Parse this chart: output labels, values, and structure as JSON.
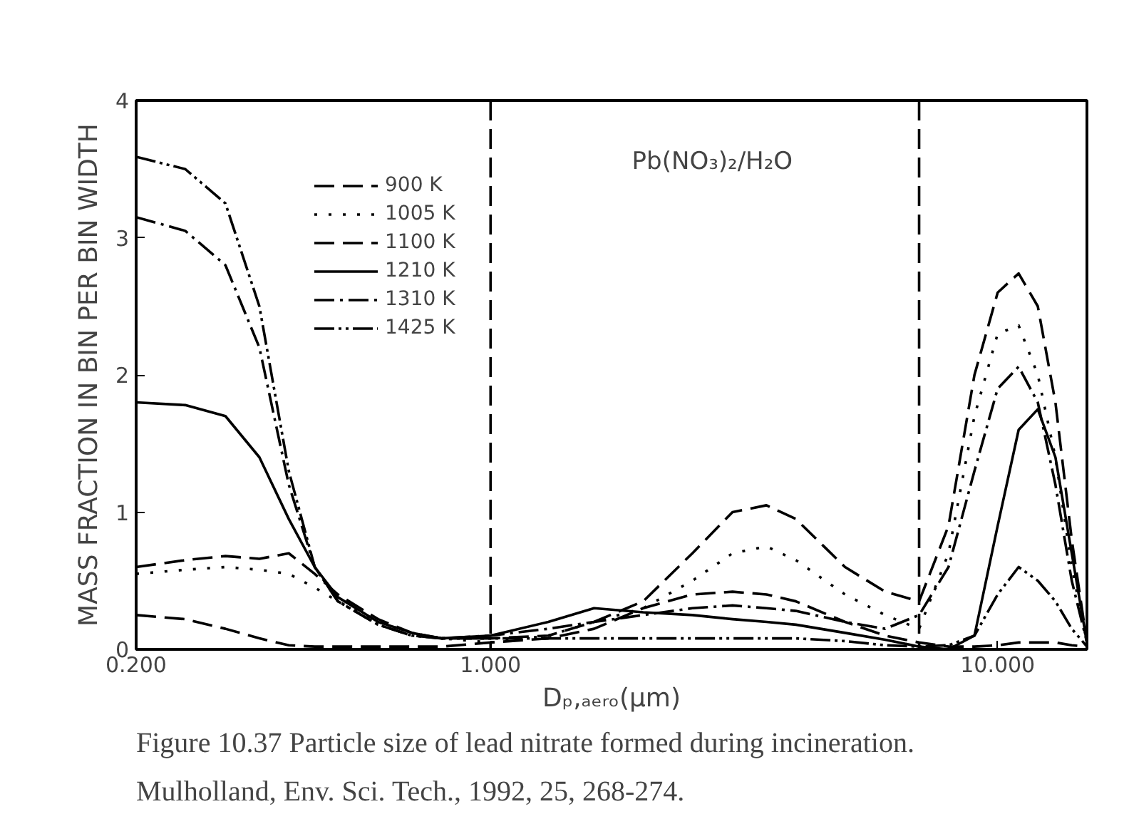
{
  "chart_data": {
    "type": "line",
    "xlabel": "Dₚ,ₐₑᵣₒ(μm)",
    "ylabel": "MASS FRACTION IN BIN PER BIN WIDTH",
    "log": "x",
    "xlim": [
      0.2,
      15
    ],
    "ylim": [
      0,
      4
    ],
    "xticks": [
      {
        "value": 0.2,
        "label": "0.200"
      },
      {
        "value": 1,
        "label": "1.000"
      },
      {
        "value": 10,
        "label": "10.000"
      }
    ],
    "yticks": [
      0,
      1,
      2,
      3,
      4
    ],
    "grid": false,
    "legend": "top left",
    "x": [
      0.2,
      0.25,
      0.3,
      0.35,
      0.4,
      0.45,
      0.5,
      0.6,
      0.7,
      0.8,
      1.0,
      1.3,
      1.6,
      2,
      2.5,
      3,
      3.5,
      4,
      5,
      6,
      7,
      8,
      9,
      10,
      11,
      12,
      13,
      14,
      15
    ],
    "series": [
      {
        "name": "900 K",
        "color": "#000000",
        "line_style": "dashed",
        "values": [
          0.25,
          0.22,
          0.15,
          0.08,
          0.03,
          0.02,
          0.02,
          0.02,
          0.02,
          0.02,
          0.05,
          0.08,
          0.15,
          0.3,
          0.4,
          0.42,
          0.4,
          0.35,
          0.2,
          0.1,
          0.05,
          0.02,
          0.02,
          0.03,
          0.05,
          0.05,
          0.05,
          0.03,
          0.02
        ]
      },
      {
        "name": "1005 K",
        "color": "#000000",
        "line_style": "dotted",
        "values": [
          0.55,
          0.58,
          0.6,
          0.58,
          0.55,
          0.45,
          0.35,
          0.2,
          0.12,
          0.08,
          0.05,
          0.1,
          0.2,
          0.3,
          0.5,
          0.7,
          0.75,
          0.65,
          0.4,
          0.25,
          0.15,
          0.7,
          1.7,
          2.3,
          2.36,
          2.0,
          1.4,
          0.6,
          0.05
        ]
      },
      {
        "name": "1100 K",
        "color": "#000000",
        "line_style": "dashed",
        "values": [
          0.6,
          0.65,
          0.68,
          0.66,
          0.7,
          0.55,
          0.4,
          0.22,
          0.12,
          0.08,
          0.08,
          0.1,
          0.2,
          0.35,
          0.7,
          1.0,
          1.05,
          0.95,
          0.6,
          0.42,
          0.35,
          0.9,
          2.0,
          2.6,
          2.74,
          2.5,
          1.8,
          0.8,
          0.05
        ]
      },
      {
        "name": "1210 K",
        "color": "#000000",
        "line_style": "solid",
        "values": [
          1.8,
          1.78,
          1.7,
          1.4,
          0.95,
          0.6,
          0.38,
          0.2,
          0.12,
          0.08,
          0.1,
          0.2,
          0.3,
          0.27,
          0.25,
          0.22,
          0.2,
          0.18,
          0.12,
          0.07,
          0.02,
          0.0,
          0.1,
          0.9,
          1.6,
          1.75,
          1.4,
          0.7,
          0.05
        ]
      },
      {
        "name": "1310 K",
        "color": "#000000",
        "line_style": "dashdot",
        "values": [
          3.15,
          3.05,
          2.8,
          2.2,
          1.2,
          0.6,
          0.35,
          0.18,
          0.1,
          0.08,
          0.1,
          0.15,
          0.2,
          0.25,
          0.3,
          0.32,
          0.3,
          0.28,
          0.2,
          0.15,
          0.25,
          0.6,
          1.3,
          1.9,
          2.06,
          1.8,
          1.2,
          0.5,
          0.05
        ]
      },
      {
        "name": "1425 K",
        "color": "#000000",
        "line_style": "dashdotdot",
        "values": [
          3.59,
          3.5,
          3.25,
          2.5,
          1.3,
          0.6,
          0.35,
          0.18,
          0.1,
          0.08,
          0.08,
          0.08,
          0.08,
          0.08,
          0.08,
          0.08,
          0.08,
          0.08,
          0.06,
          0.03,
          0.02,
          0.03,
          0.1,
          0.4,
          0.6,
          0.5,
          0.35,
          0.15,
          0.02
        ]
      }
    ],
    "ref_lines": [
      {
        "axis": "x",
        "value": 1,
        "label": null,
        "line_style": "dashed"
      },
      {
        "axis": "x",
        "value": 7,
        "label": null,
        "line_style": "dashed"
      }
    ],
    "annotations": [
      "Pb(NO₃)₂/H₂O",
      "Figure 10.37  Particle size of lead nitrate formed during incineration.",
      "Mulholland, Env. Sci. Tech., 1992, 25, 268-274."
    ]
  }
}
